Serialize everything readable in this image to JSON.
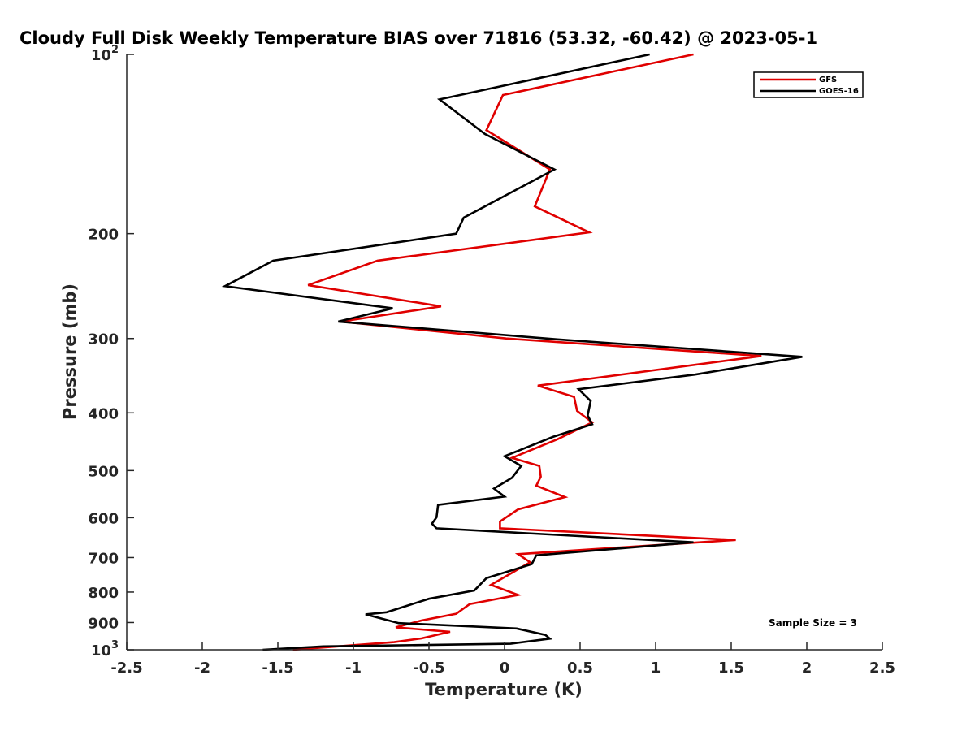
{
  "chart_data": {
    "type": "line",
    "title": "Cloudy Full Disk Weekly Temperature BIAS over 71816 (53.32, -60.42) @ 2023-05-1",
    "xlabel": "Temperature (K)",
    "ylabel": "Pressure (mb)",
    "xlim": [
      -2.5,
      2.5
    ],
    "ylim": [
      100,
      1000
    ],
    "y_scale": "log",
    "y_reversed": true,
    "grid": false,
    "legend_position": "top-right",
    "x_ticks": [
      -2.5,
      -2,
      -1.5,
      -1,
      -0.5,
      0,
      0.5,
      1,
      1.5,
      2,
      2.5
    ],
    "x_tick_labels": [
      "-2.5",
      "-2",
      "-1.5",
      "-1",
      "-0.5",
      "0",
      "0.5",
      "1",
      "1.5",
      "2",
      "2.5"
    ],
    "y_ticks": [
      {
        "value": 100,
        "base": "10",
        "exp": "2"
      },
      {
        "value": 200,
        "base": "200",
        "exp": ""
      },
      {
        "value": 300,
        "base": "300",
        "exp": ""
      },
      {
        "value": 400,
        "base": "400",
        "exp": ""
      },
      {
        "value": 500,
        "base": "500",
        "exp": ""
      },
      {
        "value": 600,
        "base": "600",
        "exp": ""
      },
      {
        "value": 700,
        "base": "700",
        "exp": ""
      },
      {
        "value": 800,
        "base": "800",
        "exp": ""
      },
      {
        "value": 900,
        "base": "900",
        "exp": ""
      },
      {
        "value": 1000,
        "base": "10",
        "exp": "3"
      }
    ],
    "annotation": "Sample Size = 3",
    "series": [
      {
        "name": "GFS",
        "color": "#e00000",
        "points": [
          [
            1.25,
            100
          ],
          [
            -0.01,
            117
          ],
          [
            -0.12,
            134
          ],
          [
            0.3,
            156
          ],
          [
            0.2,
            180
          ],
          [
            0.56,
            199
          ],
          [
            -0.84,
            222
          ],
          [
            -1.3,
            244
          ],
          [
            -0.42,
            265
          ],
          [
            -1.08,
            281
          ],
          [
            0.01,
            300
          ],
          [
            1.7,
            321
          ],
          [
            0.22,
            360
          ],
          [
            0.46,
            376
          ],
          [
            0.48,
            397
          ],
          [
            0.58,
            415
          ],
          [
            0.35,
            443
          ],
          [
            0.05,
            476
          ],
          [
            0.23,
            491
          ],
          [
            0.24,
            512
          ],
          [
            0.21,
            530
          ],
          [
            0.4,
            554
          ],
          [
            0.09,
            581
          ],
          [
            -0.03,
            609
          ],
          [
            -0.03,
            625
          ],
          [
            1.53,
            654
          ],
          [
            0.09,
            691
          ],
          [
            0.17,
            713
          ],
          [
            -0.09,
            778
          ],
          [
            0.09,
            809
          ],
          [
            -0.23,
            838
          ],
          [
            -0.32,
            870
          ],
          [
            -0.55,
            893
          ],
          [
            -0.72,
            917
          ],
          [
            -0.36,
            933
          ],
          [
            -0.55,
            957
          ],
          [
            -0.73,
            971
          ],
          [
            -1.4,
            1000
          ]
        ]
      },
      {
        "name": "GOES-16",
        "color": "#000000",
        "points": [
          [
            0.96,
            100
          ],
          [
            -0.43,
            119
          ],
          [
            -0.13,
            136
          ],
          [
            0.33,
            156
          ],
          [
            -0.27,
            188
          ],
          [
            -0.32,
            200
          ],
          [
            -1.53,
            222
          ],
          [
            -1.85,
            245
          ],
          [
            -0.74,
            267
          ],
          [
            -1.1,
            281
          ],
          [
            0.35,
            301
          ],
          [
            1.97,
            322
          ],
          [
            1.26,
            345
          ],
          [
            0.49,
            365
          ],
          [
            0.57,
            382
          ],
          [
            0.55,
            404
          ],
          [
            0.58,
            418
          ],
          [
            0.32,
            439
          ],
          [
            0.0,
            473
          ],
          [
            0.11,
            491
          ],
          [
            0.05,
            514
          ],
          [
            -0.07,
            536
          ],
          [
            0.0,
            553
          ],
          [
            -0.44,
            571
          ],
          [
            -0.45,
            599
          ],
          [
            -0.48,
            614
          ],
          [
            -0.45,
            625
          ],
          [
            1.25,
            660
          ],
          [
            0.21,
            694
          ],
          [
            0.18,
            718
          ],
          [
            -0.12,
            758
          ],
          [
            -0.2,
            795
          ],
          [
            -0.5,
            821
          ],
          [
            -0.78,
            865
          ],
          [
            -0.92,
            872
          ],
          [
            -0.7,
            902
          ],
          [
            0.08,
            921
          ],
          [
            0.27,
            944
          ],
          [
            0.3,
            958
          ],
          [
            0.04,
            977
          ],
          [
            -1.2,
            987
          ],
          [
            -1.6,
            1000
          ]
        ]
      }
    ]
  }
}
